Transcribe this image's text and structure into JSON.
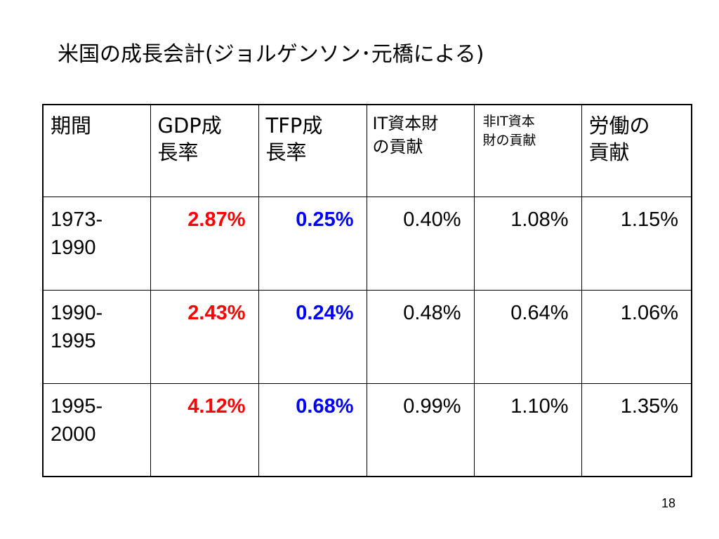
{
  "slide": {
    "title": "米国の成長会計(ジョルゲンソン･元橋による)",
    "page_number": "18"
  },
  "table": {
    "headers": [
      {
        "line1": "期間",
        "line2": ""
      },
      {
        "line1": "GDP成",
        "line2": "長率"
      },
      {
        "line1": "TFP成",
        "line2": "長率"
      },
      {
        "line1": "IT資本財",
        "line2": "の貢献"
      },
      {
        "line1": "非IT資本",
        "line2": "財の貢献"
      },
      {
        "line1": "労働の",
        "line2": "貢献"
      }
    ],
    "rows": [
      {
        "period_line1": "1973-",
        "period_line2": "1990",
        "gdp_growth": "2.87%",
        "tfp_growth": "0.25%",
        "it_capital": "0.40%",
        "non_it_capital": "1.08%",
        "labor": "1.15%"
      },
      {
        "period_line1": "1990-",
        "period_line2": "1995",
        "gdp_growth": "2.43%",
        "tfp_growth": "0.24%",
        "it_capital": "0.48%",
        "non_it_capital": "0.64%",
        "labor": "1.06%"
      },
      {
        "period_line1": "1995-",
        "period_line2": "2000",
        "gdp_growth": "4.12%",
        "tfp_growth": "0.68%",
        "it_capital": "0.99%",
        "non_it_capital": "1.10%",
        "labor": "1.35%"
      }
    ]
  },
  "colors": {
    "gdp_value": "#ff0000",
    "tfp_value": "#0000ff",
    "text": "#000000",
    "border": "#000000",
    "background": "#ffffff"
  }
}
